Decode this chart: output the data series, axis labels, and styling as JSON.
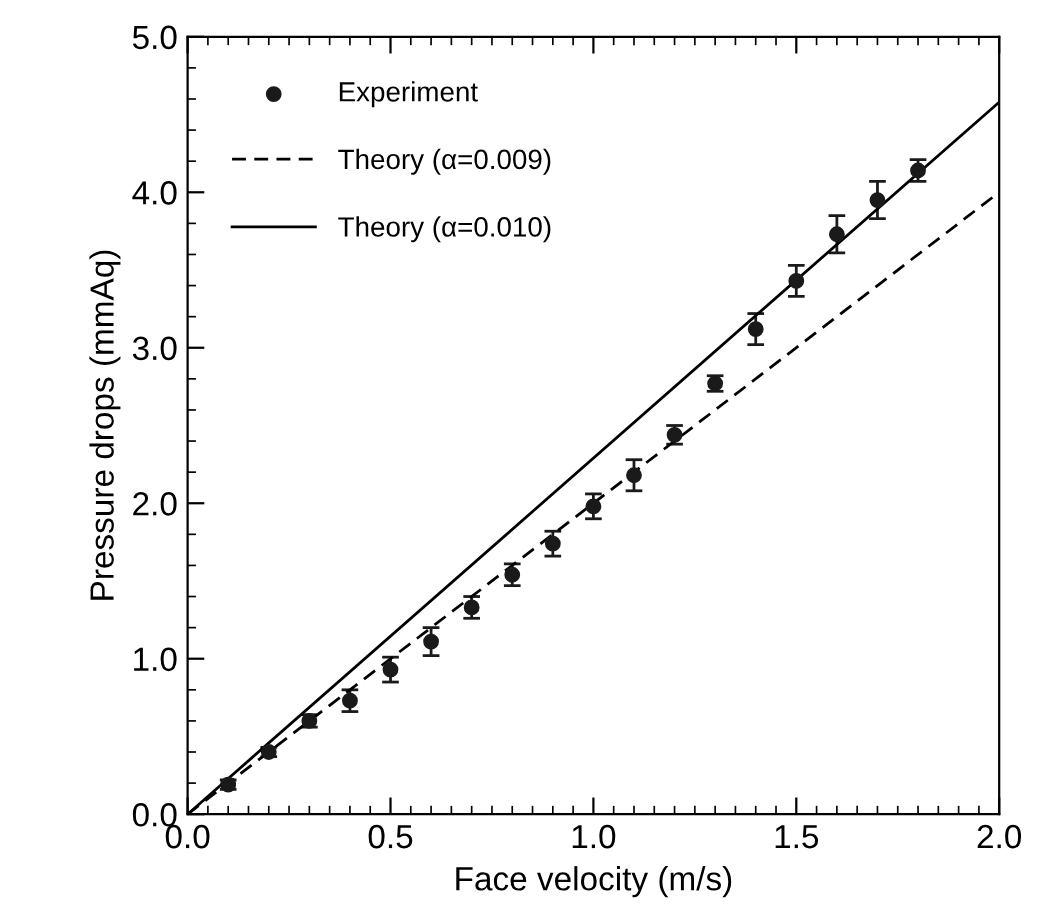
{
  "chart_data": {
    "type": "scatter",
    "xlabel": "Face velocity (m/s)",
    "ylabel": "Pressure drops (mmAq)",
    "xlim": [
      0,
      2.0
    ],
    "ylim": [
      0,
      5.0
    ],
    "xticks": [
      {
        "value": 0,
        "label": "0.0"
      },
      0.5,
      {
        "value": 1,
        "label": "1.0"
      },
      {
        "value": 1.5,
        "label": "1.5"
      },
      {
        "value": 2,
        "label": "2.0"
      }
    ],
    "yticks": [
      {
        "value": 0,
        "label": "0.0"
      },
      {
        "value": 1,
        "label": "1.0"
      },
      {
        "value": 2,
        "label": "2.0"
      },
      {
        "value": 3,
        "label": "3.0"
      },
      {
        "value": 4,
        "label": "4.0"
      },
      {
        "value": 5,
        "label": "5.0"
      }
    ],
    "legend": "top left",
    "grid": false,
    "series": [
      {
        "name": "Experiment",
        "marker": "circle",
        "color": "#1a1a1a",
        "x": [
          0.1,
          0.2,
          0.3,
          0.4,
          0.5,
          0.6,
          0.7,
          0.8,
          0.9,
          1.0,
          1.1,
          1.2,
          1.3,
          1.4,
          1.5,
          1.6,
          1.7,
          1.8
        ],
        "values": [
          0.19,
          0.4,
          0.6,
          0.73,
          0.93,
          1.11,
          1.33,
          1.54,
          1.74,
          1.98,
          2.18,
          2.44,
          2.77,
          3.12,
          3.43,
          3.73,
          3.95,
          4.14
        ],
        "errors": [
          0.03,
          0.03,
          0.04,
          0.07,
          0.08,
          0.09,
          0.07,
          0.07,
          0.08,
          0.08,
          0.1,
          0.06,
          0.05,
          0.1,
          0.1,
          0.12,
          0.12,
          0.07
        ]
      },
      {
        "name": "Theory (α=0.009)",
        "type": "line",
        "line_style": "dashed",
        "marker": "none",
        "color": "#000000",
        "x": [
          0,
          2.0
        ],
        "values": [
          0,
          4.0
        ]
      },
      {
        "name": "Theory (α=0.010)",
        "type": "line",
        "line_style": "solid",
        "marker": "none",
        "color": "#000000",
        "x": [
          0,
          2.0
        ],
        "values": [
          0,
          4.58
        ]
      }
    ]
  }
}
